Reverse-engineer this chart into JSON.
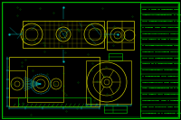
{
  "bg_color": "#000000",
  "border_color": "#008800",
  "line_color_yellow": "#cccc00",
  "line_color_green": "#00cc00",
  "line_color_cyan": "#00cccc",
  "line_color_bright": "#ffff00",
  "title": "",
  "fig_width": 2.0,
  "fig_height": 1.33,
  "dpi": 100
}
